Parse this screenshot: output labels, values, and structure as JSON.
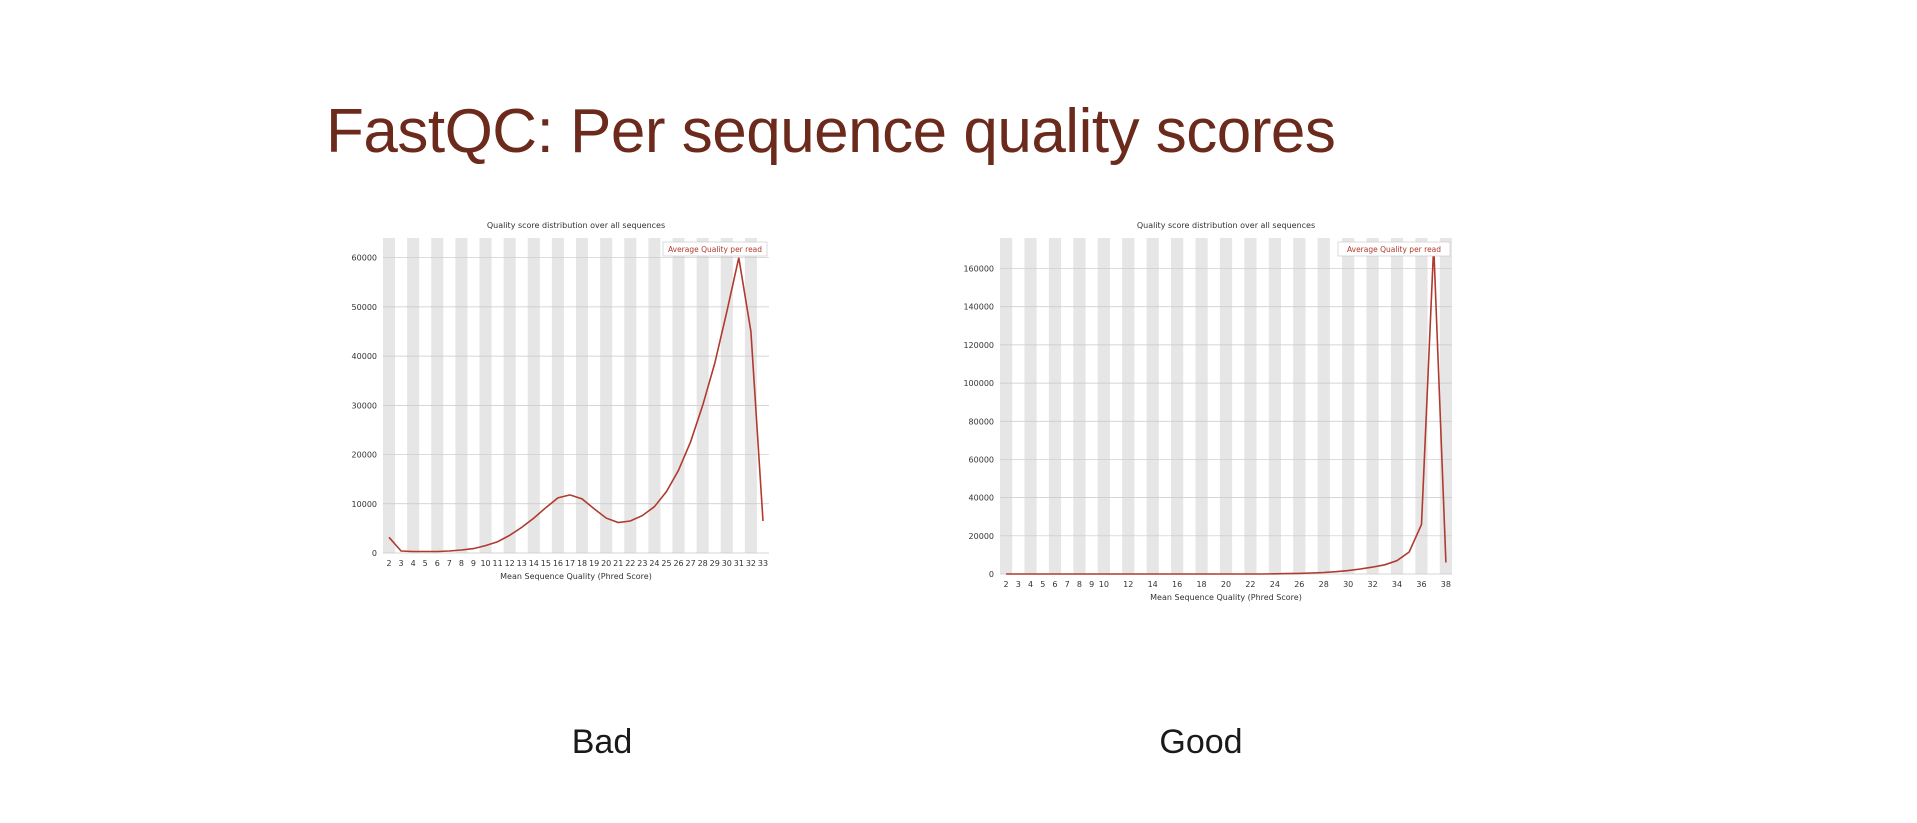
{
  "slide": {
    "title": "FastQC: Per sequence quality scores"
  },
  "colors": {
    "title": "#6b2a1c",
    "line": "#b03a2e",
    "stripe": "#e6e6e6",
    "grid": "#c8c8c8"
  },
  "chart_data": [
    {
      "type": "line",
      "caption": "Bad",
      "title": "Quality score distribution over all sequences",
      "xlabel": "Mean Sequence Quality (Phred Score)",
      "ylabel": "",
      "legend": "Average Quality per read",
      "legend_position": "top-right",
      "xlim": [
        2,
        33
      ],
      "ylim": [
        0,
        64000
      ],
      "x_ticks": [
        "2",
        "3",
        "4",
        "5",
        "6",
        "7",
        "8",
        "9",
        "10",
        "11",
        "12",
        "13",
        "14",
        "15",
        "16",
        "17",
        "18",
        "19",
        "20",
        "21",
        "22",
        "23",
        "24",
        "25",
        "26",
        "27",
        "28",
        "29",
        "30",
        "31",
        "32",
        "33"
      ],
      "y_ticks": [
        "0",
        "10000",
        "20000",
        "30000",
        "40000",
        "50000",
        "60000"
      ],
      "series": [
        {
          "x": [
            2,
            3,
            4,
            5,
            6,
            7,
            8,
            9,
            10,
            11,
            12,
            13,
            14,
            15,
            16,
            17,
            18,
            19,
            20,
            21,
            22,
            23,
            24,
            25,
            26,
            27,
            28,
            29,
            30,
            31,
            32,
            33
          ],
          "values": [
            3200,
            400,
            300,
            300,
            300,
            400,
            600,
            900,
            1500,
            2300,
            3600,
            5200,
            7100,
            9200,
            11200,
            11800,
            11000,
            9000,
            7100,
            6200,
            6500,
            7600,
            9400,
            12500,
            16800,
            22600,
            30000,
            38500,
            49000,
            60000,
            45000,
            6500
          ]
        }
      ]
    },
    {
      "type": "line",
      "caption": "Good",
      "title": "Quality score distribution over all sequences",
      "xlabel": "Mean Sequence Quality (Phred Score)",
      "ylabel": "",
      "legend": "Average Quality per read",
      "legend_position": "top-right",
      "xlim": [
        2,
        38
      ],
      "ylim": [
        0,
        176000
      ],
      "x_ticks": [
        "2",
        "3",
        "4",
        "5",
        "6",
        "7",
        "8",
        "9",
        "10",
        "12",
        "14",
        "16",
        "18",
        "20",
        "22",
        "24",
        "26",
        "28",
        "30",
        "32",
        "34",
        "36",
        "38"
      ],
      "y_ticks": [
        "0",
        "20000",
        "40000",
        "60000",
        "80000",
        "100000",
        "120000",
        "140000",
        "160000"
      ],
      "series": [
        {
          "x": [
            2,
            3,
            4,
            5,
            6,
            7,
            8,
            9,
            10,
            11,
            12,
            13,
            14,
            15,
            16,
            17,
            18,
            19,
            20,
            21,
            22,
            23,
            24,
            25,
            26,
            27,
            28,
            29,
            30,
            31,
            32,
            33,
            34,
            35,
            36,
            37,
            38
          ],
          "values": [
            0,
            0,
            0,
            0,
            0,
            0,
            0,
            0,
            0,
            0,
            0,
            0,
            0,
            0,
            0,
            0,
            0,
            0,
            0,
            0,
            0,
            0,
            100,
            200,
            300,
            500,
            800,
            1200,
            1800,
            2600,
            3600,
            4800,
            7000,
            11500,
            26000,
            172000,
            6000
          ]
        }
      ]
    }
  ]
}
